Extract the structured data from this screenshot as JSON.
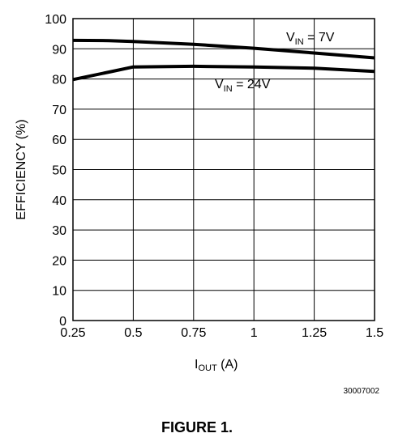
{
  "chart_data": {
    "type": "line",
    "ylabel": "EFFICIENCY (%)",
    "xlabel": {
      "main": "I",
      "sub": "OUT",
      "unit": " (A)"
    },
    "xlim": [
      0.25,
      1.5
    ],
    "ylim": [
      0,
      100
    ],
    "xticks": [
      "0.25",
      "0.5",
      "0.75",
      "1",
      "1.25",
      "1.5"
    ],
    "xtick_values": [
      0.25,
      0.5,
      0.75,
      1,
      1.25,
      1.5
    ],
    "yticks": [
      "0",
      "10",
      "20",
      "30",
      "40",
      "50",
      "60",
      "70",
      "80",
      "90",
      "100"
    ],
    "ytick_values": [
      0,
      10,
      20,
      30,
      40,
      50,
      60,
      70,
      80,
      90,
      100
    ],
    "grid": true,
    "series": [
      {
        "label_main": "V",
        "label_sub": "IN",
        "label_rest": " = 7V",
        "x": [
          0.25,
          0.4,
          0.5,
          0.75,
          1.0,
          1.25,
          1.5
        ],
        "y": [
          92.8,
          92.7,
          92.4,
          91.5,
          90.2,
          88.6,
          87.0
        ]
      },
      {
        "label_main": "V",
        "label_sub": "IN",
        "label_rest": " = 24V",
        "x": [
          0.25,
          0.4,
          0.5,
          0.75,
          1.0,
          1.25,
          1.5
        ],
        "y": [
          79.8,
          82.3,
          84.0,
          84.2,
          84.0,
          83.6,
          82.5
        ]
      }
    ]
  },
  "figure": {
    "id": "30007002",
    "caption": "FIGURE 1."
  }
}
